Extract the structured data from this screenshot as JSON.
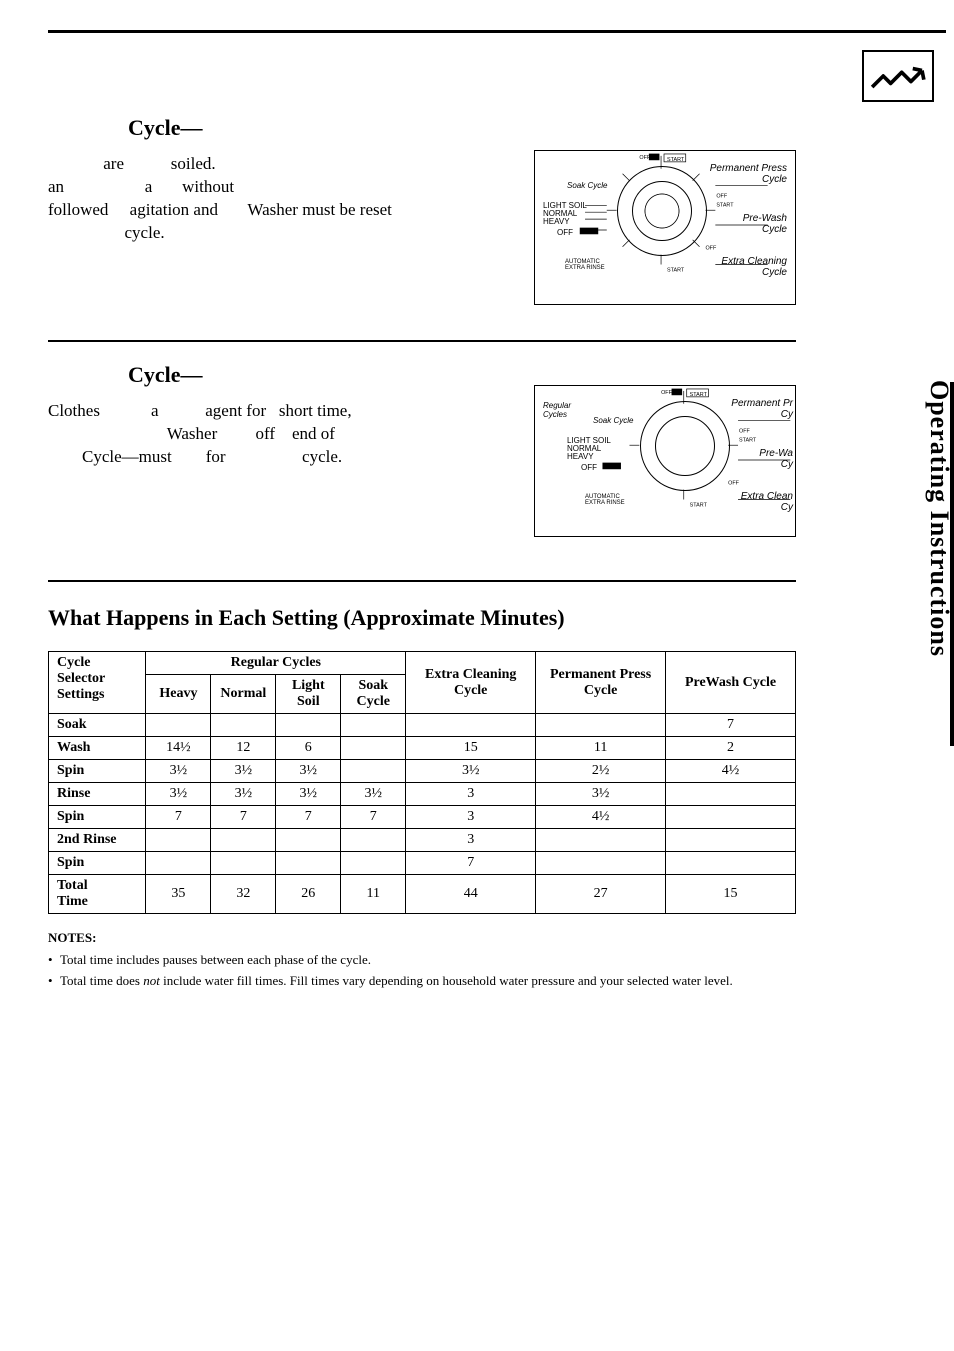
{
  "colors": {
    "background": "#ffffff",
    "text": "#000000",
    "border": "#000000"
  },
  "sideTab": "Operating Instructions",
  "section1": {
    "title": "Cycle—",
    "line1": "             are           soiled.",
    "line2": "an                   a       without",
    "line3": "followed     agitation and       Washer must be reset",
    "line4": "                  cycle."
  },
  "section2": {
    "title": "Cycle—",
    "line1": "Clothes            a           agent for   short time,",
    "line2": "                            Washer         off    end of",
    "line3": "        Cycle—must        for                  cycle."
  },
  "dial1": {
    "labelsLeft": [
      "Soak Cycle",
      "LIGHT SOIL",
      "NORMAL",
      "HEAVY",
      "OFF",
      "AUTOMATIC\nEXTRA RINSE"
    ],
    "labelsRight": [
      "Permanent Press\nCycle",
      "Pre-Wash\nCycle",
      "Extra Cleaning\nCycle"
    ],
    "markers": [
      "OFF",
      "START",
      "OFF",
      "START",
      "OFF",
      "START"
    ]
  },
  "dial2": {
    "labelsLeft": [
      "Regular\nCycles",
      "Soak Cycle",
      "LIGHT SOIL",
      "NORMAL",
      "HEAVY",
      "OFF",
      "AUTOMATIC\nEXTRA RINSE"
    ],
    "labelsRight": [
      "Permanent Pr\nCy",
      "Pre-Wa\nCy",
      "Extra Clean\nCy"
    ],
    "markers": [
      "OFF",
      "START",
      "OFF",
      "START",
      "OFF",
      "START"
    ]
  },
  "table": {
    "title": "What Happens in Each Setting (Approximate Minutes)",
    "header": {
      "cycleSelector": "Cycle\nSelector\nSettings",
      "regularCycles": "Regular Cycles",
      "extraCleaning": "Extra Cleaning\nCycle",
      "permPress": "Permanent Press\nCycle",
      "preWash": "PreWash Cycle",
      "regSub": [
        "Heavy",
        "Normal",
        "Light\nSoil",
        "Soak\nCycle"
      ]
    },
    "rows": [
      {
        "label": "Soak",
        "cells": [
          "",
          "",
          "",
          "",
          "",
          "",
          "7"
        ]
      },
      {
        "label": "Wash",
        "cells": [
          "14½",
          "12",
          "6",
          "",
          "15",
          "11",
          "2"
        ]
      },
      {
        "label": "Spin",
        "cells": [
          "3½",
          "3½",
          "3½",
          "",
          "3½",
          "2½",
          "4½"
        ]
      },
      {
        "label": "Rinse",
        "cells": [
          "3½",
          "3½",
          "3½",
          "3½",
          "3",
          "3½",
          ""
        ]
      },
      {
        "label": "Spin",
        "cells": [
          "7",
          "7",
          "7",
          "7",
          "3",
          "4½",
          ""
        ]
      },
      {
        "label": "2nd Rinse",
        "cells": [
          "",
          "",
          "",
          "",
          "3",
          "",
          ""
        ]
      },
      {
        "label": "Spin",
        "cells": [
          "",
          "",
          "",
          "",
          "7",
          "",
          ""
        ]
      },
      {
        "label": "Total\nTime",
        "cells": [
          "35",
          "32",
          "26",
          "11",
          "44",
          "27",
          "15"
        ]
      }
    ]
  },
  "notes": {
    "title": "NOTES:",
    "items": [
      "Total time includes pauses between each phase of the cycle.",
      "Total time does <em>not</em> include water fill times. Fill times vary depending on household water pressure and your selected water level."
    ]
  }
}
